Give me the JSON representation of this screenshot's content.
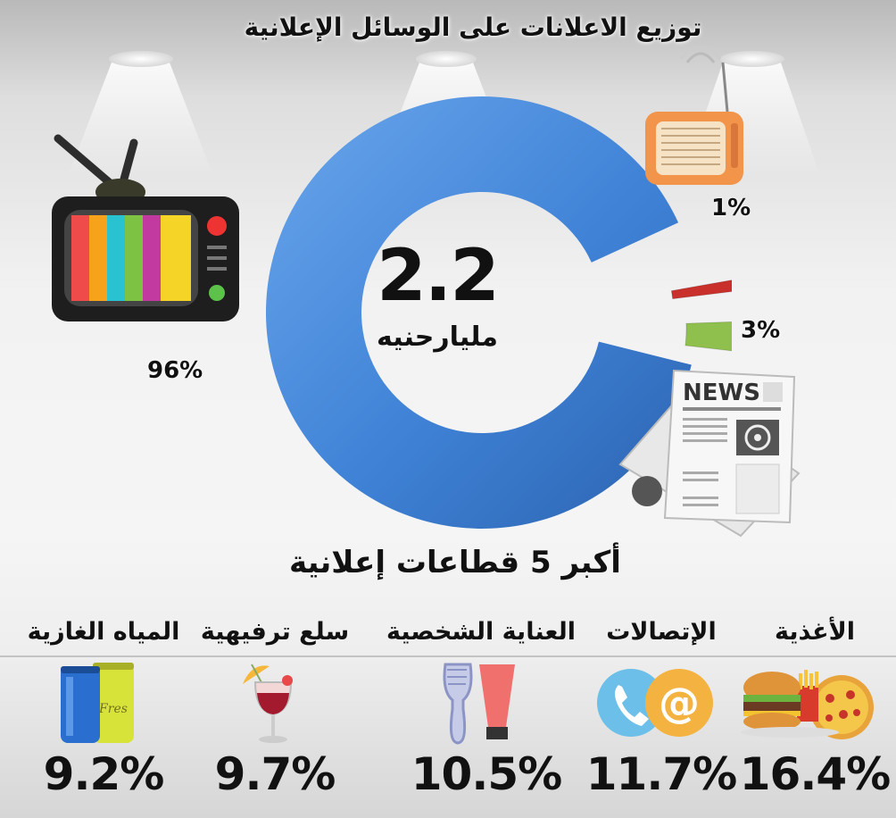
{
  "chart_data": [
    {
      "type": "pie",
      "title": "توزيع الاعلانات على الوسائل الإعلانية",
      "center_value": "2.2",
      "center_unit": "مليارحنيه",
      "slices": [
        {
          "value": 96,
          "label": "96%",
          "color": "#3f82d6",
          "icon": "tv-icon"
        },
        {
          "value": 3,
          "label": "3%",
          "color": "#8fbf4d",
          "icon": "newspaper-icon"
        },
        {
          "value": 1,
          "label": "1%",
          "color": "#c9302c",
          "icon": "radio-icon"
        }
      ]
    },
    {
      "type": "bar",
      "title": "أكبر 5 قطاعات إعلانية",
      "categories": [
        "الأغذية",
        "الإتصالات",
        "العناية الشخصية",
        "سلع ترفيهية",
        "المياه الغازية"
      ],
      "values": [
        16.4,
        11.7,
        10.5,
        9.7,
        9.2
      ],
      "value_labels": [
        "16.4%",
        "11.7%",
        "10.5%",
        "9.7%",
        "9.2%"
      ],
      "icons": [
        "food-icon",
        "phone-email-icon",
        "cosmetics-icon",
        "cocktail-icon",
        "soda-cans-icon"
      ]
    }
  ],
  "colors": {
    "donut_blue": "#3f82d6",
    "green": "#8fbf4d",
    "red": "#c9302c",
    "text": "#111111"
  }
}
